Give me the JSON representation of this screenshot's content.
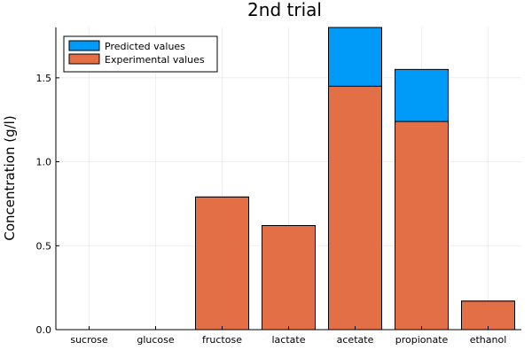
{
  "chart_data": {
    "type": "bar",
    "title": "2nd trial",
    "xlabel": "",
    "ylabel": "Concentration (g/l)",
    "categories": [
      "sucrose",
      "glucose",
      "fructose",
      "lactate",
      "acetate",
      "propionate",
      "ethanol"
    ],
    "series": [
      {
        "name": "Predicted values",
        "color": "#009af9",
        "values": [
          0,
          0,
          0.79,
          0.62,
          1.8,
          1.55,
          0.17
        ]
      },
      {
        "name": "Experimental values",
        "color": "#e26f46",
        "values": [
          0,
          0,
          0.79,
          0.62,
          1.45,
          1.24,
          0.17
        ]
      }
    ],
    "ylim": [
      0,
      1.8
    ],
    "yticks": [
      0.0,
      0.5,
      1.0,
      1.5
    ],
    "ytick_labels": [
      "0.0",
      "0.5",
      "1.0",
      "1.5"
    ],
    "grid": true,
    "legend_position": "top-left"
  }
}
